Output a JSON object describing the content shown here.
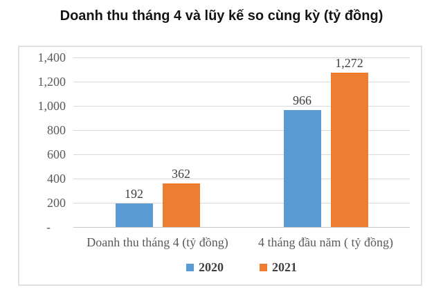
{
  "page": {
    "title": "Doanh thu tháng 4 và lũy kế so cùng kỳ (tỷ đồng)"
  },
  "chart_data": {
    "type": "bar",
    "title": "Doanh thu tháng 4 và lũy kế so cùng kỳ (tỷ đồng)",
    "categories": [
      "Doanh thu tháng 4 (tỷ đồng)",
      "4 tháng đầu năm ( tỷ đồng)"
    ],
    "series": [
      {
        "name": "2020",
        "color": "#5B9BD5",
        "values": [
          192,
          966
        ],
        "value_labels": [
          "192",
          "966"
        ]
      },
      {
        "name": "2021",
        "color": "#ED7D31",
        "values": [
          362,
          1272
        ],
        "value_labels": [
          "362",
          "1,272"
        ]
      }
    ],
    "xlabel": "",
    "ylabel": "",
    "ylim": [
      0,
      1400
    ],
    "ytick_interval": 200,
    "ytick_labels": [
      "-",
      "200",
      "400",
      "600",
      "800",
      "1,000",
      "1,200",
      "1,400"
    ],
    "grid": true,
    "legend_position": "bottom",
    "colors": {
      "grid": "#d9d9d9",
      "axis_text": "#595959",
      "data_label": "#3d3d3d",
      "legend_text": "#404040",
      "frame_border": "#e0e0e0",
      "series_2020": "#5B9BD5",
      "series_2021": "#ED7D31"
    }
  }
}
